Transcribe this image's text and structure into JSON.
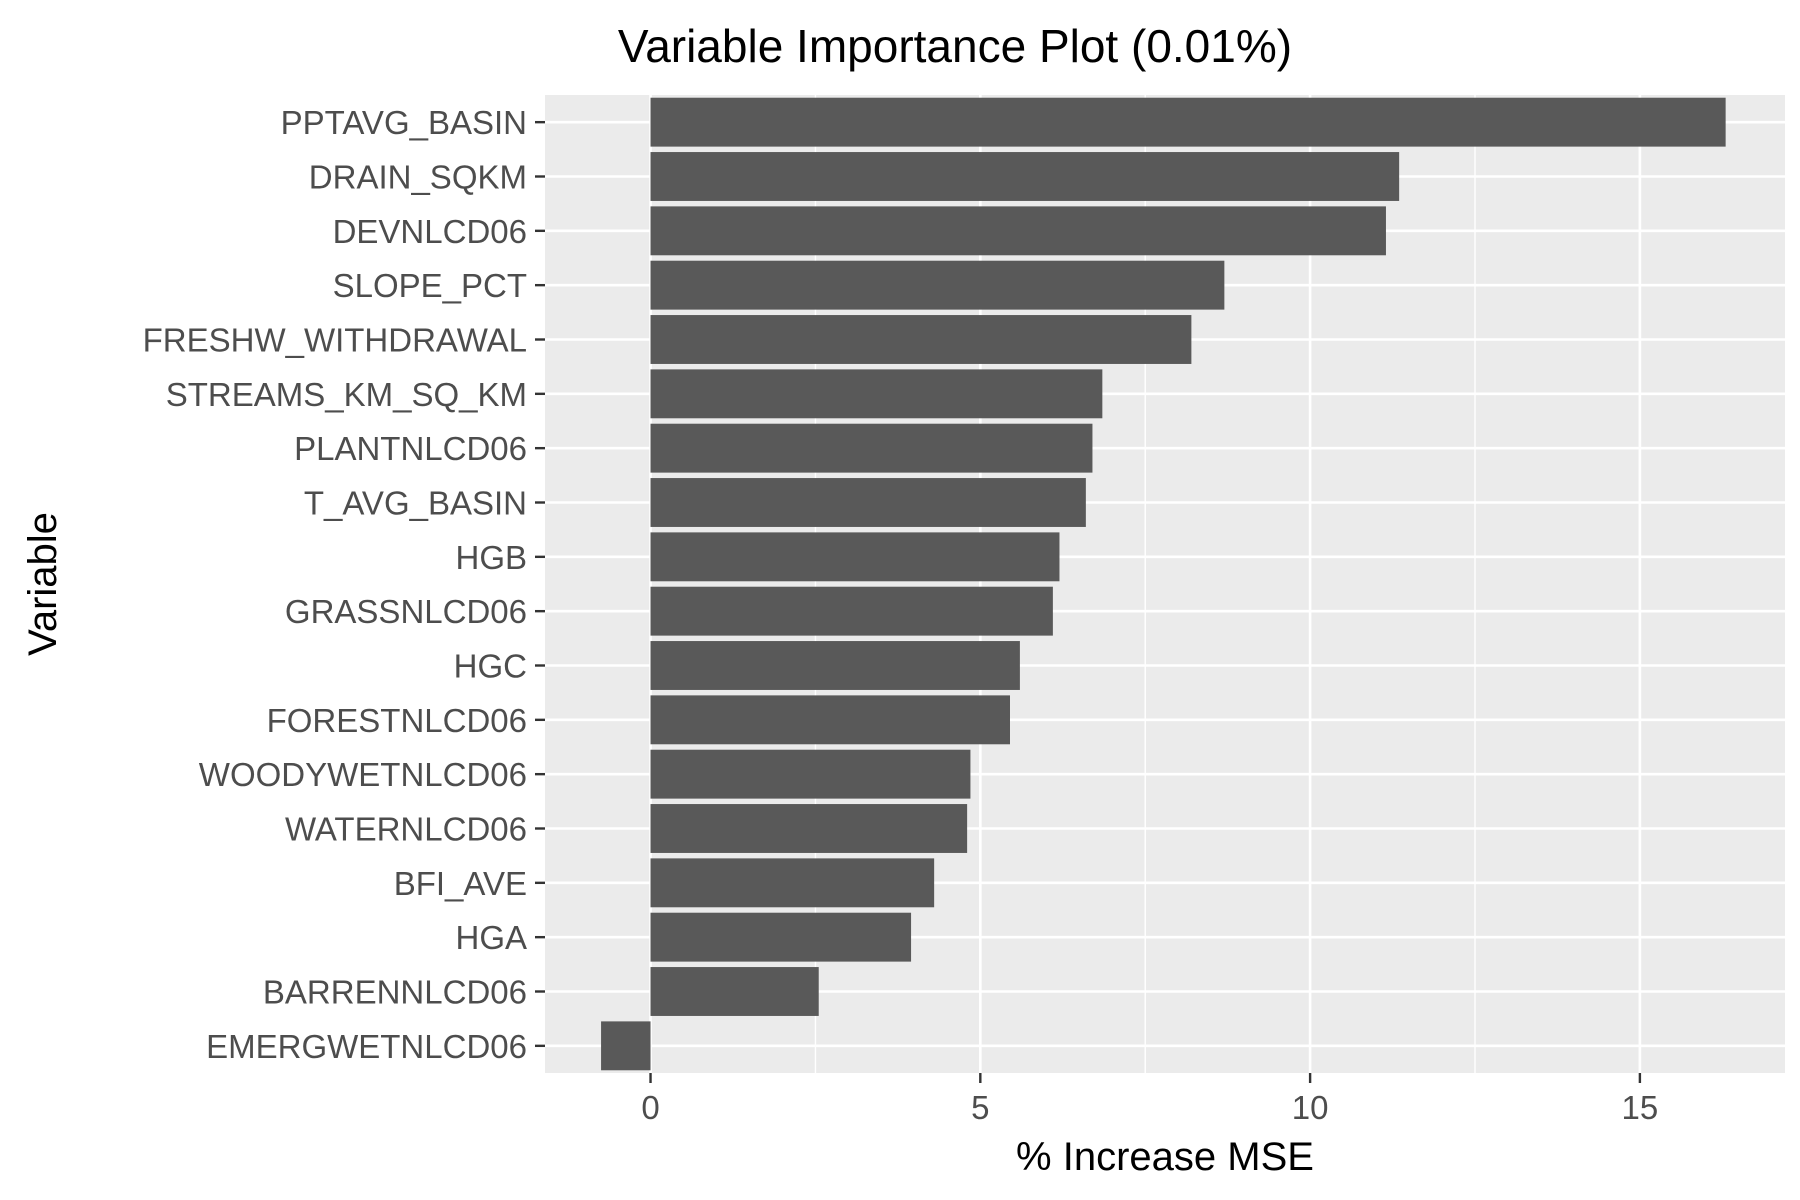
{
  "chart_data": {
    "type": "bar",
    "orientation": "horizontal",
    "title": "Variable Importance Plot (0.01%)",
    "xlabel": "% Increase MSE",
    "ylabel": "Variable",
    "xlim": [
      -1.6,
      17.2
    ],
    "xticks": [
      0,
      5,
      10,
      15
    ],
    "xtick_labels": [
      "0",
      "5",
      "10",
      "15"
    ],
    "grid": true,
    "panel_color": "#ebebeb",
    "grid_color": "#ffffff",
    "bar_color": "#595959",
    "categories": [
      "PPTAVG_BASIN",
      "DRAIN_SQKM",
      "DEVNLCD06",
      "SLOPE_PCT",
      "FRESHW_WITHDRAWAL",
      "STREAMS_KM_SQ_KM",
      "PLANTNLCD06",
      "T_AVG_BASIN",
      "HGB",
      "GRASSNLCD06",
      "HGC",
      "FORESTNLCD06",
      "WOODYWETNLCD06",
      "WATERNLCD06",
      "BFI_AVE",
      "HGA",
      "BARRENNLCD06",
      "EMERGWETNLCD06"
    ],
    "values": [
      16.3,
      11.35,
      11.15,
      8.7,
      8.2,
      6.85,
      6.7,
      6.6,
      6.2,
      6.1,
      5.6,
      5.45,
      4.85,
      4.8,
      4.3,
      3.95,
      2.55,
      -0.75
    ]
  }
}
